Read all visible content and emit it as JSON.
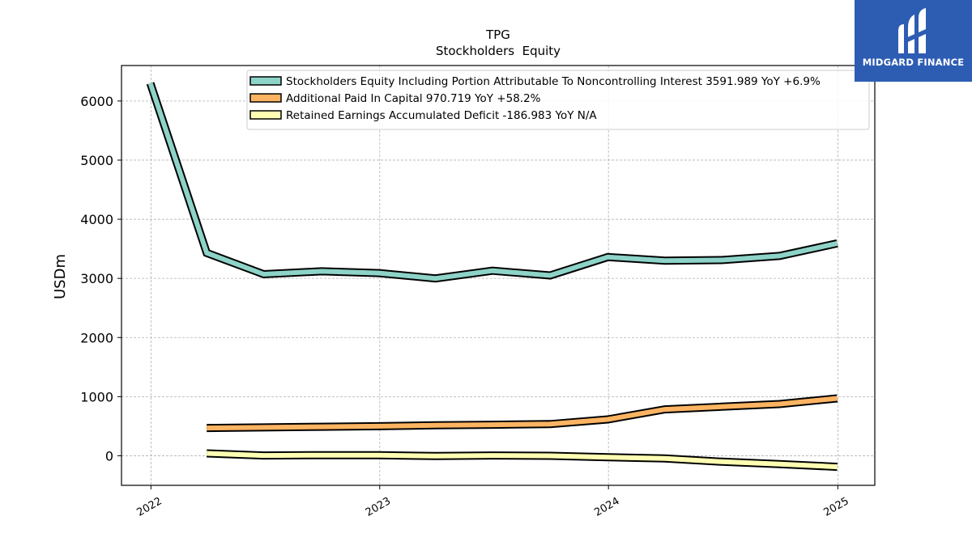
{
  "chart_data": {
    "type": "line",
    "title": "TPG",
    "subtitle": "Stockholders  Equity",
    "xlabel": "",
    "ylabel": "USDm",
    "xlim": [
      "2021-11-15",
      "2025-03-01"
    ],
    "ylim": [
      -500,
      6600
    ],
    "x_ticks": [
      "2022",
      "2023",
      "2024",
      "2025"
    ],
    "y_ticks": [
      0,
      1000,
      2000,
      3000,
      4000,
      5000,
      6000
    ],
    "grid": true,
    "legend_position": "top-right",
    "series": [
      {
        "name": "Stockholders Equity Including Portion Attributable To Noncontrolling Interest",
        "legend": "Stockholders Equity Including Portion Attributable To Noncontrolling Interest  3591.989 YoY +6.9%",
        "color": "#8dd3c7",
        "x": [
          "2021-12-31",
          "2022-03-31",
          "2022-06-30",
          "2022-09-30",
          "2022-12-31",
          "2023-03-31",
          "2023-06-30",
          "2023-09-30",
          "2023-12-31",
          "2024-03-31",
          "2024-06-30",
          "2024-09-30",
          "2024-12-31"
        ],
        "values": [
          6300,
          3430,
          3070,
          3120,
          3090,
          3000,
          3130,
          3050,
          3360,
          3300,
          3310,
          3380,
          3592
        ]
      },
      {
        "name": "Additional Paid In Capital",
        "legend": "Additional Paid In Capital  970.719 YoY +58.2%",
        "color": "#fdb462",
        "x": [
          "2022-03-31",
          "2022-06-30",
          "2022-09-30",
          "2022-12-31",
          "2023-03-31",
          "2023-06-30",
          "2023-09-30",
          "2023-12-31",
          "2024-03-31",
          "2024-06-30",
          "2024-09-30",
          "2024-12-31"
        ],
        "values": [
          470,
          480,
          490,
          500,
          515,
          525,
          535,
          615,
          785,
          830,
          875,
          971
        ]
      },
      {
        "name": "Retained Earnings Accumulated Deficit",
        "legend": "Retained Earnings Accumulated Deficit  -186.983 YoY N/A",
        "color": "#ffffb3",
        "x": [
          "2022-03-31",
          "2022-06-30",
          "2022-09-30",
          "2022-12-31",
          "2023-03-31",
          "2023-06-30",
          "2023-09-30",
          "2023-12-31",
          "2024-03-31",
          "2024-06-30",
          "2024-09-30",
          "2024-12-31"
        ],
        "values": [
          40,
          5,
          10,
          10,
          -5,
          5,
          0,
          -25,
          -45,
          -100,
          -140,
          -187
        ]
      }
    ]
  },
  "logo": {
    "text": "MIDGARD FINANCE",
    "color": "#2d5db3"
  }
}
